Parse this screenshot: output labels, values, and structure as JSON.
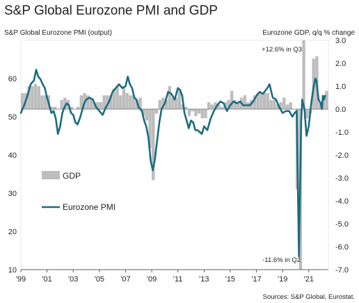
{
  "chart_data": {
    "type": "bar+line",
    "title": "S&P Global Eurozone PMI and GDP",
    "left_axis_label": "S&P Global Eurozone PMI (output)",
    "right_axis_label": "Eurozone GDP, q/q % change",
    "left_ylim": [
      10,
      70
    ],
    "left_ticks": [
      "10",
      "20",
      "30",
      "40",
      "50",
      "60"
    ],
    "right_ylim": [
      -7.0,
      3.0
    ],
    "right_ticks": [
      "3.0",
      "2.0",
      "1.0",
      "0.0",
      "-1.0",
      "-2.0",
      "-3.0",
      "-4.0",
      "-5.0",
      "-6.0",
      "-7.0"
    ],
    "x_ticks": [
      "'99",
      "'01",
      "'03",
      "'05",
      "'07",
      "'09",
      "'11",
      "'13",
      "'15",
      "'17",
      "'19",
      "'21"
    ],
    "annotations": [
      "+12.6% in Q3",
      "-11.6% in Q2"
    ],
    "legend": [
      "GDP",
      "Eurozone PMI"
    ],
    "source": "Sources: S&P Global, Eurostat.",
    "colors": {
      "gdp": "#bdbdbd",
      "pmi": "#1b6b7f",
      "zero_line": "#666666"
    },
    "gdp_quarterly": [
      {
        "q": "1999Q1",
        "v": 0.7
      },
      {
        "q": "1999Q2",
        "v": 0.7
      },
      {
        "q": "1999Q3",
        "v": 1.0
      },
      {
        "q": "1999Q4",
        "v": 1.0
      },
      {
        "q": "2000Q1",
        "v": 1.1
      },
      {
        "q": "2000Q2",
        "v": 1.0
      },
      {
        "q": "2000Q3",
        "v": 0.6
      },
      {
        "q": "2000Q4",
        "v": 0.6
      },
      {
        "q": "2001Q1",
        "v": 0.6
      },
      {
        "q": "2001Q2",
        "v": 0.1
      },
      {
        "q": "2001Q3",
        "v": 0.1
      },
      {
        "q": "2001Q4",
        "v": 0.0
      },
      {
        "q": "2002Q1",
        "v": 0.4
      },
      {
        "q": "2002Q2",
        "v": 0.5
      },
      {
        "q": "2002Q3",
        "v": 0.4
      },
      {
        "q": "2002Q4",
        "v": 0.1
      },
      {
        "q": "2003Q1",
        "v": 0.0
      },
      {
        "q": "2003Q2",
        "v": 0.1
      },
      {
        "q": "2003Q3",
        "v": 0.6
      },
      {
        "q": "2003Q4",
        "v": 0.7
      },
      {
        "q": "2004Q1",
        "v": 0.6
      },
      {
        "q": "2004Q2",
        "v": 0.5
      },
      {
        "q": "2004Q3",
        "v": 0.3
      },
      {
        "q": "2004Q4",
        "v": 0.3
      },
      {
        "q": "2005Q1",
        "v": 0.3
      },
      {
        "q": "2005Q2",
        "v": 0.6
      },
      {
        "q": "2005Q3",
        "v": 0.6
      },
      {
        "q": "2005Q4",
        "v": 0.6
      },
      {
        "q": "2006Q1",
        "v": 0.9
      },
      {
        "q": "2006Q2",
        "v": 1.0
      },
      {
        "q": "2006Q3",
        "v": 0.6
      },
      {
        "q": "2006Q4",
        "v": 1.0
      },
      {
        "q": "2007Q1",
        "v": 0.7
      },
      {
        "q": "2007Q2",
        "v": 0.6
      },
      {
        "q": "2007Q3",
        "v": 0.6
      },
      {
        "q": "2007Q4",
        "v": 0.4
      },
      {
        "q": "2008Q1",
        "v": 0.5
      },
      {
        "q": "2008Q2",
        "v": -0.3
      },
      {
        "q": "2008Q3",
        "v": -0.5
      },
      {
        "q": "2008Q4",
        "v": -1.7
      },
      {
        "q": "2009Q1",
        "v": -3.1
      },
      {
        "q": "2009Q2",
        "v": -0.2
      },
      {
        "q": "2009Q3",
        "v": 0.4
      },
      {
        "q": "2009Q4",
        "v": 0.5
      },
      {
        "q": "2010Q1",
        "v": 0.4
      },
      {
        "q": "2010Q2",
        "v": 1.0
      },
      {
        "q": "2010Q3",
        "v": 0.5
      },
      {
        "q": "2010Q4",
        "v": 0.5
      },
      {
        "q": "2011Q1",
        "v": 0.8
      },
      {
        "q": "2011Q2",
        "v": 0.2
      },
      {
        "q": "2011Q3",
        "v": 0.1
      },
      {
        "q": "2011Q4",
        "v": -0.3
      },
      {
        "q": "2012Q1",
        "v": -0.1
      },
      {
        "q": "2012Q2",
        "v": -0.3
      },
      {
        "q": "2012Q3",
        "v": -0.2
      },
      {
        "q": "2012Q4",
        "v": -0.4
      },
      {
        "q": "2013Q1",
        "v": -0.4
      },
      {
        "q": "2013Q2",
        "v": 0.3
      },
      {
        "q": "2013Q3",
        "v": 0.2
      },
      {
        "q": "2013Q4",
        "v": 0.3
      },
      {
        "q": "2014Q1",
        "v": 0.2
      },
      {
        "q": "2014Q2",
        "v": 0.1
      },
      {
        "q": "2014Q3",
        "v": 0.3
      },
      {
        "q": "2014Q4",
        "v": 0.4
      },
      {
        "q": "2015Q1",
        "v": 0.8
      },
      {
        "q": "2015Q2",
        "v": 0.4
      },
      {
        "q": "2015Q3",
        "v": 0.3
      },
      {
        "q": "2015Q4",
        "v": 0.5
      },
      {
        "q": "2016Q1",
        "v": 0.6
      },
      {
        "q": "2016Q2",
        "v": 0.3
      },
      {
        "q": "2016Q3",
        "v": 0.4
      },
      {
        "q": "2016Q4",
        "v": 0.6
      },
      {
        "q": "2017Q1",
        "v": 0.7
      },
      {
        "q": "2017Q2",
        "v": 0.7
      },
      {
        "q": "2017Q3",
        "v": 0.7
      },
      {
        "q": "2017Q4",
        "v": 0.7
      },
      {
        "q": "2018Q1",
        "v": 0.4
      },
      {
        "q": "2018Q2",
        "v": 0.4
      },
      {
        "q": "2018Q3",
        "v": 0.2
      },
      {
        "q": "2018Q4",
        "v": 0.3
      },
      {
        "q": "2019Q1",
        "v": 0.5
      },
      {
        "q": "2019Q2",
        "v": 0.2
      },
      {
        "q": "2019Q3",
        "v": 0.3
      },
      {
        "q": "2019Q4",
        "v": 0.0
      },
      {
        "q": "2020Q1",
        "v": -3.5
      },
      {
        "q": "2020Q2",
        "v": -11.6
      },
      {
        "q": "2020Q3",
        "v": 12.6
      },
      {
        "q": "2020Q4",
        "v": -0.4
      },
      {
        "q": "2021Q1",
        "v": -0.2
      },
      {
        "q": "2021Q2",
        "v": 2.2
      },
      {
        "q": "2021Q3",
        "v": 2.3
      },
      {
        "q": "2021Q4",
        "v": 0.3
      },
      {
        "q": "2022Q1",
        "v": 0.6
      },
      {
        "q": "2022Q2",
        "v": 0.8
      }
    ],
    "pmi_monthly": [
      {
        "t": 1999.0,
        "v": 51.0
      },
      {
        "t": 1999.25,
        "v": 53.0
      },
      {
        "t": 1999.5,
        "v": 55.5
      },
      {
        "t": 1999.75,
        "v": 58.5
      },
      {
        "t": 2000.0,
        "v": 59.5
      },
      {
        "t": 2000.17,
        "v": 62.3
      },
      {
        "t": 2000.33,
        "v": 60.5
      },
      {
        "t": 2000.5,
        "v": 59.8
      },
      {
        "t": 2000.67,
        "v": 58.5
      },
      {
        "t": 2000.83,
        "v": 57.5
      },
      {
        "t": 2001.0,
        "v": 55.0
      },
      {
        "t": 2001.17,
        "v": 53.0
      },
      {
        "t": 2001.33,
        "v": 51.0
      },
      {
        "t": 2001.5,
        "v": 51.5
      },
      {
        "t": 2001.67,
        "v": 49.5
      },
      {
        "t": 2001.83,
        "v": 45.5
      },
      {
        "t": 2002.0,
        "v": 47.5
      },
      {
        "t": 2002.17,
        "v": 51.0
      },
      {
        "t": 2002.33,
        "v": 52.5
      },
      {
        "t": 2002.5,
        "v": 53.5
      },
      {
        "t": 2002.67,
        "v": 53.0
      },
      {
        "t": 2002.83,
        "v": 51.0
      },
      {
        "t": 2003.0,
        "v": 50.5
      },
      {
        "t": 2003.17,
        "v": 48.5
      },
      {
        "t": 2003.33,
        "v": 48.0
      },
      {
        "t": 2003.5,
        "v": 49.5
      },
      {
        "t": 2003.67,
        "v": 51.5
      },
      {
        "t": 2003.83,
        "v": 53.5
      },
      {
        "t": 2004.0,
        "v": 54.5
      },
      {
        "t": 2004.25,
        "v": 55.0
      },
      {
        "t": 2004.5,
        "v": 54.5
      },
      {
        "t": 2004.75,
        "v": 52.5
      },
      {
        "t": 2005.0,
        "v": 51.5
      },
      {
        "t": 2005.25,
        "v": 50.5
      },
      {
        "t": 2005.5,
        "v": 52.5
      },
      {
        "t": 2005.75,
        "v": 54.0
      },
      {
        "t": 2006.0,
        "v": 56.5
      },
      {
        "t": 2006.25,
        "v": 57.5
      },
      {
        "t": 2006.5,
        "v": 58.5
      },
      {
        "t": 2006.75,
        "v": 57.5
      },
      {
        "t": 2007.0,
        "v": 58.0
      },
      {
        "t": 2007.17,
        "v": 60.5
      },
      {
        "t": 2007.33,
        "v": 58.5
      },
      {
        "t": 2007.5,
        "v": 57.5
      },
      {
        "t": 2007.67,
        "v": 55.0
      },
      {
        "t": 2007.83,
        "v": 54.5
      },
      {
        "t": 2008.0,
        "v": 52.5
      },
      {
        "t": 2008.25,
        "v": 51.5
      },
      {
        "t": 2008.42,
        "v": 49.0
      },
      {
        "t": 2008.58,
        "v": 47.5
      },
      {
        "t": 2008.75,
        "v": 44.5
      },
      {
        "t": 2008.92,
        "v": 38.5
      },
      {
        "t": 2009.08,
        "v": 36.0
      },
      {
        "t": 2009.25,
        "v": 39.0
      },
      {
        "t": 2009.42,
        "v": 44.0
      },
      {
        "t": 2009.58,
        "v": 48.5
      },
      {
        "t": 2009.75,
        "v": 52.0
      },
      {
        "t": 2010.0,
        "v": 53.5
      },
      {
        "t": 2010.25,
        "v": 56.5
      },
      {
        "t": 2010.5,
        "v": 56.0
      },
      {
        "t": 2010.75,
        "v": 54.5
      },
      {
        "t": 2011.0,
        "v": 57.5
      },
      {
        "t": 2011.17,
        "v": 57.0
      },
      {
        "t": 2011.33,
        "v": 55.5
      },
      {
        "t": 2011.5,
        "v": 51.0
      },
      {
        "t": 2011.67,
        "v": 49.0
      },
      {
        "t": 2011.83,
        "v": 47.0
      },
      {
        "t": 2012.0,
        "v": 49.0
      },
      {
        "t": 2012.17,
        "v": 48.5
      },
      {
        "t": 2012.33,
        "v": 46.5
      },
      {
        "t": 2012.5,
        "v": 46.5
      },
      {
        "t": 2012.67,
        "v": 46.0
      },
      {
        "t": 2012.83,
        "v": 45.5
      },
      {
        "t": 2013.0,
        "v": 47.5
      },
      {
        "t": 2013.25,
        "v": 46.5
      },
      {
        "t": 2013.5,
        "v": 49.5
      },
      {
        "t": 2013.75,
        "v": 51.5
      },
      {
        "t": 2014.0,
        "v": 53.0
      },
      {
        "t": 2014.25,
        "v": 54.0
      },
      {
        "t": 2014.5,
        "v": 53.5
      },
      {
        "t": 2014.75,
        "v": 51.5
      },
      {
        "t": 2015.0,
        "v": 53.0
      },
      {
        "t": 2015.25,
        "v": 54.0
      },
      {
        "t": 2015.5,
        "v": 53.5
      },
      {
        "t": 2015.75,
        "v": 54.0
      },
      {
        "t": 2016.0,
        "v": 53.0
      },
      {
        "t": 2016.25,
        "v": 53.0
      },
      {
        "t": 2016.5,
        "v": 53.0
      },
      {
        "t": 2016.75,
        "v": 54.0
      },
      {
        "t": 2017.0,
        "v": 55.5
      },
      {
        "t": 2017.25,
        "v": 56.5
      },
      {
        "t": 2017.5,
        "v": 56.0
      },
      {
        "t": 2017.83,
        "v": 57.5
      },
      {
        "t": 2018.0,
        "v": 58.5
      },
      {
        "t": 2018.25,
        "v": 55.0
      },
      {
        "t": 2018.5,
        "v": 54.5
      },
      {
        "t": 2018.75,
        "v": 52.5
      },
      {
        "t": 2019.0,
        "v": 51.0
      },
      {
        "t": 2019.25,
        "v": 51.5
      },
      {
        "t": 2019.5,
        "v": 51.5
      },
      {
        "t": 2019.75,
        "v": 50.0
      },
      {
        "t": 2019.92,
        "v": 51.0
      },
      {
        "t": 2020.08,
        "v": 51.5
      },
      {
        "t": 2020.17,
        "v": 31.0
      },
      {
        "t": 2020.25,
        "v": 13.5
      },
      {
        "t": 2020.33,
        "v": 31.0
      },
      {
        "t": 2020.42,
        "v": 48.5
      },
      {
        "t": 2020.5,
        "v": 54.5
      },
      {
        "t": 2020.67,
        "v": 52.0
      },
      {
        "t": 2020.83,
        "v": 45.0
      },
      {
        "t": 2021.0,
        "v": 47.5
      },
      {
        "t": 2021.17,
        "v": 53.0
      },
      {
        "t": 2021.33,
        "v": 57.0
      },
      {
        "t": 2021.5,
        "v": 60.0
      },
      {
        "t": 2021.58,
        "v": 59.5
      },
      {
        "t": 2021.75,
        "v": 54.5
      },
      {
        "t": 2021.92,
        "v": 53.5
      },
      {
        "t": 2022.0,
        "v": 52.0
      },
      {
        "t": 2022.08,
        "v": 55.5
      },
      {
        "t": 2022.17,
        "v": 54.5
      },
      {
        "t": 2022.25,
        "v": 55.5
      }
    ]
  }
}
